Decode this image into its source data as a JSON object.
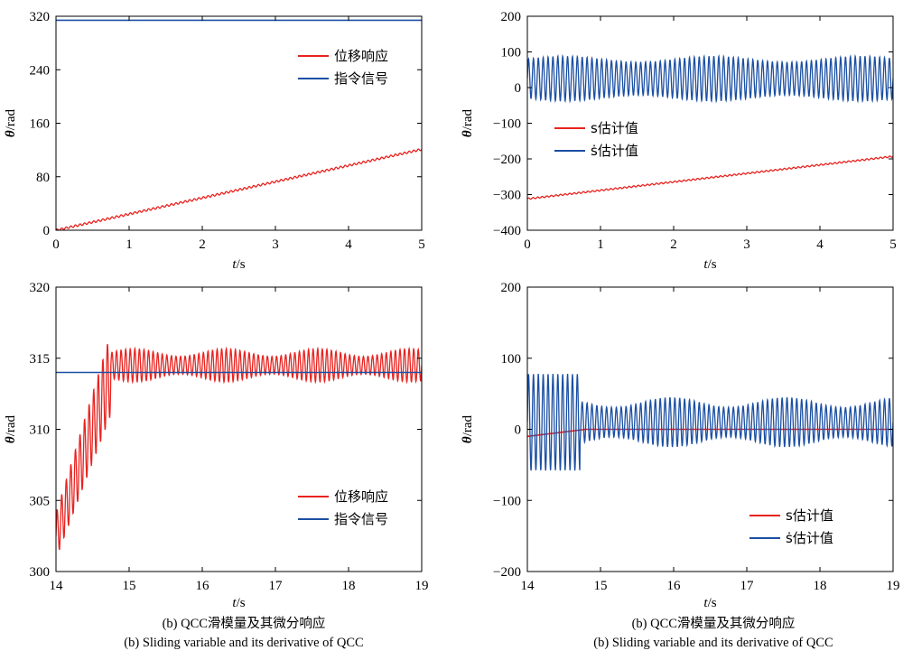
{
  "colors": {
    "red": "#e8231f",
    "blue": "#1b4fa3"
  },
  "captions": {
    "left": {
      "cn": "(b) QCC滑模量及其微分响应",
      "en": "(b) Sliding variable and its derivative of QCC"
    },
    "right": {
      "cn": "(b) QCC滑模量及其微分响应",
      "en": "(b) Sliding variable and its derivative of QCC"
    }
  },
  "chart_data": [
    {
      "id": "top-left",
      "type": "line",
      "xlabel": "t/s",
      "ylabel": "θ/rad",
      "xlim": [
        0,
        5
      ],
      "ylim": [
        0,
        320
      ],
      "xticks": [
        "0",
        "1",
        "2",
        "3",
        "4",
        "5"
      ],
      "yticks": [
        "0",
        "80",
        "160",
        "240",
        "320"
      ],
      "legend_position": "top-right",
      "series": [
        {
          "name": "位移响应",
          "color": "red",
          "kind": "ramp_osc",
          "x": [
            0,
            5
          ],
          "y": [
            0,
            121
          ],
          "amp": 1.5,
          "cycles": 80
        },
        {
          "name": "指令信号",
          "color": "blue",
          "kind": "const",
          "x": [
            0,
            5
          ],
          "y": [
            314,
            314
          ]
        }
      ]
    },
    {
      "id": "top-right",
      "type": "line",
      "xlabel": "t/s",
      "ylabel": "θ/rad",
      "xlim": [
        0,
        5
      ],
      "ylim": [
        -400,
        200
      ],
      "xticks": [
        "0",
        "1",
        "2",
        "3",
        "4",
        "5"
      ],
      "yticks": [
        "200",
        "100",
        "0",
        "−100",
        "−200",
        "−300",
        "−400"
      ],
      "legend_position": "middle-left",
      "series": [
        {
          "name": "s估计值",
          "color": "red",
          "kind": "ramp_osc",
          "x": [
            0,
            5
          ],
          "y": [
            -312,
            -193
          ],
          "amp": 2,
          "cycles": 80
        },
        {
          "name": "ṡ估计值",
          "color": "blue",
          "kind": "osc",
          "x": [
            0,
            5
          ],
          "center": 25,
          "amp": 55,
          "cycles": 75
        }
      ]
    },
    {
      "id": "bottom-left",
      "type": "line",
      "xlabel": "t/s",
      "ylabel": "θ/rad",
      "xlim": [
        14,
        19
      ],
      "ylim": [
        300,
        320
      ],
      "xticks": [
        "14",
        "15",
        "16",
        "17",
        "18",
        "19"
      ],
      "yticks": [
        "300",
        "305",
        "310",
        "315",
        "320"
      ],
      "legend_position": "bottom-right",
      "series": [
        {
          "name": "位移响应",
          "color": "red",
          "kind": "rise_osc",
          "x": [
            14,
            14.75,
            19
          ],
          "y": [
            302.5,
            313.9,
            314.5
          ],
          "amp_start": 1.6,
          "amp_end": 0.9,
          "cycles": 80
        },
        {
          "name": "指令信号",
          "color": "blue",
          "kind": "const",
          "x": [
            14,
            19
          ],
          "y": [
            314,
            314
          ]
        }
      ]
    },
    {
      "id": "bottom-right",
      "type": "line",
      "xlabel": "t/s",
      "ylabel": "θ/rad",
      "xlim": [
        14,
        19
      ],
      "ylim": [
        -200,
        200
      ],
      "xticks": [
        "14",
        "15",
        "16",
        "17",
        "18",
        "19"
      ],
      "yticks": [
        "200",
        "100",
        "0",
        "−100",
        "−200"
      ],
      "legend_position": "bottom-right",
      "series": [
        {
          "name": "s估计值",
          "color": "red",
          "kind": "rise",
          "x": [
            14,
            14.8,
            19
          ],
          "y": [
            -10,
            0,
            0
          ]
        },
        {
          "name": "ṡ估计值",
          "color": "blue",
          "kind": "burst_osc",
          "x": [
            14,
            14.72,
            19
          ],
          "center": 10,
          "amp_start": 68,
          "amp_end": 28,
          "cycles": 75
        }
      ]
    }
  ]
}
